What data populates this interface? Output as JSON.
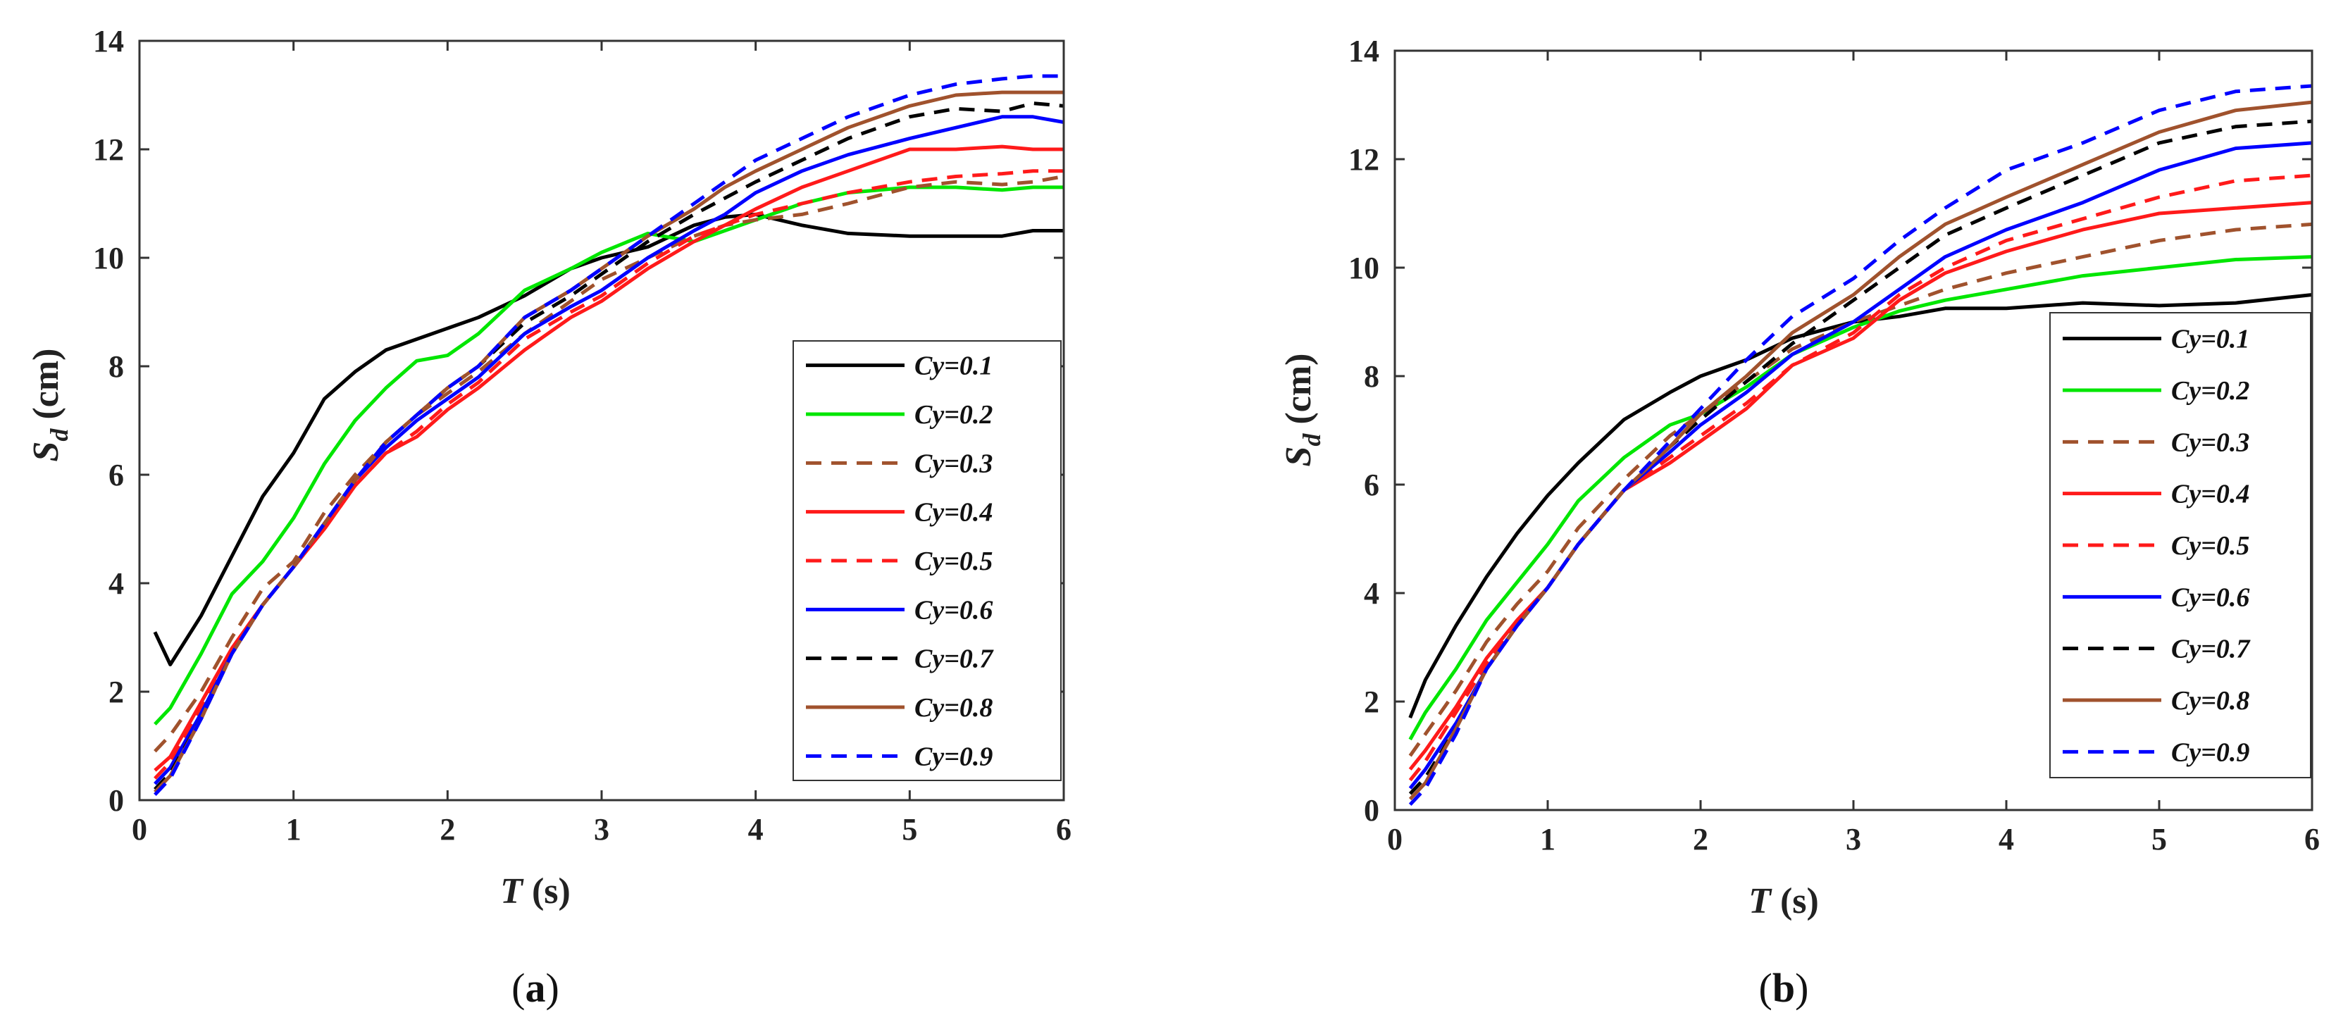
{
  "chart_data": [
    {
      "type": "line",
      "caption_open": "(",
      "caption_letter": "a",
      "caption_close": ")",
      "xlabel_var": "T",
      "xlabel_unit": " (s)",
      "ylabel_var": "S",
      "ylabel_sub": "d",
      "ylabel_unit": " (cm)",
      "xlim": [
        0,
        6
      ],
      "ylim": [
        0,
        14
      ],
      "xticks": [
        0,
        1,
        2,
        3,
        4,
        5,
        6
      ],
      "yticks": [
        0,
        2,
        4,
        6,
        8,
        10,
        12,
        14
      ],
      "legend_position": "lower-right",
      "series": [
        {
          "name": "Cy=0.1",
          "color": "#000000",
          "dash": "solid",
          "x": [
            0.1,
            0.2,
            0.4,
            0.6,
            0.8,
            1.0,
            1.2,
            1.4,
            1.6,
            1.8,
            2.0,
            2.2,
            2.5,
            2.8,
            3.0,
            3.3,
            3.6,
            3.8,
            4.0,
            4.3,
            4.6,
            5.0,
            5.3,
            5.6,
            5.8,
            6.0
          ],
          "y": [
            3.1,
            2.5,
            3.4,
            4.5,
            5.6,
            6.4,
            7.4,
            7.9,
            8.3,
            8.5,
            8.7,
            8.9,
            9.3,
            9.8,
            10.0,
            10.2,
            10.6,
            10.75,
            10.8,
            10.6,
            10.45,
            10.4,
            10.4,
            10.4,
            10.5,
            10.5
          ]
        },
        {
          "name": "Cy=0.2",
          "color": "#00e600",
          "dash": "solid",
          "x": [
            0.1,
            0.2,
            0.4,
            0.6,
            0.8,
            1.0,
            1.2,
            1.4,
            1.6,
            1.8,
            2.0,
            2.2,
            2.5,
            2.8,
            3.0,
            3.3,
            3.6,
            3.8,
            4.0,
            4.3,
            4.6,
            5.0,
            5.3,
            5.6,
            5.8,
            6.0
          ],
          "y": [
            1.4,
            1.7,
            2.7,
            3.8,
            4.4,
            5.2,
            6.2,
            7.0,
            7.6,
            8.1,
            8.2,
            8.6,
            9.4,
            9.8,
            10.1,
            10.45,
            10.3,
            10.5,
            10.7,
            11.0,
            11.2,
            11.3,
            11.3,
            11.25,
            11.3,
            11.3
          ]
        },
        {
          "name": "Cy=0.3",
          "color": "#a0522d",
          "dash": "dash",
          "x": [
            0.1,
            0.2,
            0.4,
            0.6,
            0.8,
            1.0,
            1.2,
            1.4,
            1.6,
            1.8,
            2.0,
            2.2,
            2.5,
            2.8,
            3.0,
            3.3,
            3.6,
            3.8,
            4.0,
            4.3,
            4.6,
            5.0,
            5.3,
            5.6,
            5.8,
            6.0
          ],
          "y": [
            0.9,
            1.2,
            2.0,
            3.0,
            3.9,
            4.4,
            5.3,
            6.0,
            6.6,
            7.1,
            7.5,
            7.9,
            8.6,
            9.2,
            9.6,
            10.0,
            10.4,
            10.6,
            10.7,
            10.8,
            11.0,
            11.3,
            11.4,
            11.35,
            11.4,
            11.5
          ]
        },
        {
          "name": "Cy=0.4",
          "color": "#ff1a1a",
          "dash": "solid",
          "x": [
            0.1,
            0.2,
            0.4,
            0.6,
            0.8,
            1.0,
            1.2,
            1.4,
            1.6,
            1.8,
            2.0,
            2.2,
            2.5,
            2.8,
            3.0,
            3.3,
            3.6,
            3.8,
            4.0,
            4.3,
            4.6,
            5.0,
            5.3,
            5.6,
            5.8,
            6.0
          ],
          "y": [
            0.55,
            0.8,
            1.8,
            2.8,
            3.6,
            4.3,
            5.0,
            5.8,
            6.4,
            6.7,
            7.2,
            7.6,
            8.3,
            8.9,
            9.2,
            9.8,
            10.3,
            10.6,
            10.9,
            11.3,
            11.6,
            12.0,
            12.0,
            12.05,
            12.0,
            12.0
          ]
        },
        {
          "name": "Cy=0.5",
          "color": "#ff1a1a",
          "dash": "dash",
          "x": [
            0.1,
            0.2,
            0.4,
            0.6,
            0.8,
            1.0,
            1.2,
            1.4,
            1.6,
            1.8,
            2.0,
            2.2,
            2.5,
            2.8,
            3.0,
            3.3,
            3.6,
            3.8,
            4.0,
            4.3,
            4.6,
            5.0,
            5.3,
            5.6,
            5.8,
            6.0
          ],
          "y": [
            0.4,
            0.7,
            1.7,
            2.8,
            3.6,
            4.3,
            5.0,
            5.8,
            6.4,
            6.8,
            7.3,
            7.7,
            8.5,
            9.0,
            9.3,
            9.9,
            10.4,
            10.6,
            10.8,
            11.0,
            11.2,
            11.4,
            11.5,
            11.55,
            11.6,
            11.6
          ]
        },
        {
          "name": "Cy=0.6",
          "color": "#0000ff",
          "dash": "solid",
          "x": [
            0.1,
            0.2,
            0.4,
            0.6,
            0.8,
            1.0,
            1.2,
            1.4,
            1.6,
            1.8,
            2.0,
            2.2,
            2.5,
            2.8,
            3.0,
            3.3,
            3.6,
            3.8,
            4.0,
            4.3,
            4.6,
            5.0,
            5.3,
            5.6,
            5.8,
            6.0
          ],
          "y": [
            0.3,
            0.6,
            1.6,
            2.7,
            3.6,
            4.3,
            5.1,
            5.9,
            6.5,
            7.0,
            7.4,
            7.8,
            8.6,
            9.1,
            9.4,
            10.0,
            10.5,
            10.8,
            11.2,
            11.6,
            11.9,
            12.2,
            12.4,
            12.6,
            12.6,
            12.5
          ]
        },
        {
          "name": "Cy=0.7",
          "color": "#000000",
          "dash": "dash",
          "x": [
            0.1,
            0.2,
            0.4,
            0.6,
            0.8,
            1.0,
            1.2,
            1.4,
            1.6,
            1.8,
            2.0,
            2.2,
            2.5,
            2.8,
            3.0,
            3.3,
            3.6,
            3.8,
            4.0,
            4.3,
            4.6,
            5.0,
            5.3,
            5.6,
            5.8,
            6.0
          ],
          "y": [
            0.2,
            0.5,
            1.5,
            2.7,
            3.6,
            4.3,
            5.1,
            5.9,
            6.6,
            7.1,
            7.6,
            8.0,
            8.8,
            9.3,
            9.7,
            10.3,
            10.8,
            11.1,
            11.4,
            11.8,
            12.2,
            12.6,
            12.75,
            12.7,
            12.85,
            12.8
          ]
        },
        {
          "name": "Cy=0.8",
          "color": "#a0522d",
          "dash": "solid",
          "x": [
            0.1,
            0.2,
            0.4,
            0.6,
            0.8,
            1.0,
            1.2,
            1.4,
            1.6,
            1.8,
            2.0,
            2.2,
            2.5,
            2.8,
            3.0,
            3.3,
            3.6,
            3.8,
            4.0,
            4.3,
            4.6,
            5.0,
            5.3,
            5.6,
            5.8,
            6.0
          ],
          "y": [
            0.15,
            0.45,
            1.5,
            2.7,
            3.6,
            4.3,
            5.1,
            5.9,
            6.6,
            7.1,
            7.6,
            8.0,
            8.9,
            9.4,
            9.8,
            10.4,
            10.9,
            11.3,
            11.6,
            12.0,
            12.4,
            12.8,
            13.0,
            13.05,
            13.05,
            13.05
          ]
        },
        {
          "name": "Cy=0.9",
          "color": "#0000ff",
          "dash": "dash",
          "x": [
            0.1,
            0.2,
            0.4,
            0.6,
            0.8,
            1.0,
            1.2,
            1.4,
            1.6,
            1.8,
            2.0,
            2.2,
            2.5,
            2.8,
            3.0,
            3.3,
            3.6,
            3.8,
            4.0,
            4.3,
            4.6,
            5.0,
            5.3,
            5.6,
            5.8,
            6.0
          ],
          "y": [
            0.1,
            0.4,
            1.5,
            2.7,
            3.6,
            4.3,
            5.1,
            5.9,
            6.6,
            7.1,
            7.6,
            8.0,
            8.9,
            9.4,
            9.8,
            10.4,
            11.0,
            11.4,
            11.8,
            12.2,
            12.6,
            13.0,
            13.2,
            13.3,
            13.35,
            13.35
          ]
        }
      ]
    },
    {
      "type": "line",
      "caption_open": "(",
      "caption_letter": "b",
      "caption_close": ")",
      "xlabel_var": "T",
      "xlabel_unit": " (s)",
      "ylabel_var": "S",
      "ylabel_sub": "d",
      "ylabel_unit": " (cm)",
      "xlim": [
        0,
        6
      ],
      "ylim": [
        0,
        14
      ],
      "xticks": [
        0,
        1,
        2,
        3,
        4,
        5,
        6
      ],
      "yticks": [
        0,
        2,
        4,
        6,
        8,
        10,
        12,
        14
      ],
      "legend_position": "lower-right",
      "series": [
        {
          "name": "Cy=0.1",
          "color": "#000000",
          "dash": "solid",
          "x": [
            0.1,
            0.2,
            0.4,
            0.6,
            0.8,
            1.0,
            1.2,
            1.5,
            1.8,
            2.0,
            2.3,
            2.6,
            3.0,
            3.3,
            3.6,
            4.0,
            4.5,
            5.0,
            5.5,
            6.0
          ],
          "y": [
            1.7,
            2.4,
            3.4,
            4.3,
            5.1,
            5.8,
            6.4,
            7.2,
            7.7,
            8.0,
            8.3,
            8.7,
            9.0,
            9.1,
            9.25,
            9.25,
            9.35,
            9.3,
            9.35,
            9.5
          ]
        },
        {
          "name": "Cy=0.2",
          "color": "#00e600",
          "dash": "solid",
          "x": [
            0.1,
            0.2,
            0.4,
            0.6,
            0.8,
            1.0,
            1.2,
            1.5,
            1.8,
            2.0,
            2.3,
            2.6,
            3.0,
            3.3,
            3.6,
            4.0,
            4.5,
            5.0,
            5.5,
            6.0
          ],
          "y": [
            1.3,
            1.8,
            2.6,
            3.5,
            4.2,
            4.9,
            5.7,
            6.5,
            7.1,
            7.3,
            7.8,
            8.4,
            8.9,
            9.2,
            9.4,
            9.6,
            9.85,
            10.0,
            10.15,
            10.2
          ]
        },
        {
          "name": "Cy=0.3",
          "color": "#a0522d",
          "dash": "dash",
          "x": [
            0.1,
            0.2,
            0.4,
            0.6,
            0.8,
            1.0,
            1.2,
            1.5,
            1.8,
            2.0,
            2.3,
            2.6,
            3.0,
            3.3,
            3.6,
            4.0,
            4.5,
            5.0,
            5.5,
            6.0
          ],
          "y": [
            1.0,
            1.4,
            2.2,
            3.1,
            3.8,
            4.4,
            5.2,
            6.1,
            6.9,
            7.3,
            7.9,
            8.5,
            9.0,
            9.3,
            9.6,
            9.9,
            10.2,
            10.5,
            10.7,
            10.8
          ]
        },
        {
          "name": "Cy=0.4",
          "color": "#ff1a1a",
          "dash": "solid",
          "x": [
            0.1,
            0.2,
            0.4,
            0.6,
            0.8,
            1.0,
            1.2,
            1.5,
            1.8,
            2.0,
            2.3,
            2.6,
            3.0,
            3.3,
            3.6,
            4.0,
            4.5,
            5.0,
            5.5,
            6.0
          ],
          "y": [
            0.75,
            1.1,
            1.9,
            2.8,
            3.5,
            4.1,
            4.9,
            5.9,
            6.4,
            6.8,
            7.4,
            8.2,
            8.7,
            9.4,
            9.9,
            10.3,
            10.7,
            11.0,
            11.1,
            11.2
          ]
        },
        {
          "name": "Cy=0.5",
          "color": "#ff1a1a",
          "dash": "dash",
          "x": [
            0.1,
            0.2,
            0.4,
            0.6,
            0.8,
            1.0,
            1.2,
            1.5,
            1.8,
            2.0,
            2.3,
            2.6,
            3.0,
            3.3,
            3.6,
            4.0,
            4.5,
            5.0,
            5.5,
            6.0
          ],
          "y": [
            0.55,
            0.9,
            1.8,
            2.7,
            3.4,
            4.1,
            4.9,
            5.9,
            6.5,
            6.9,
            7.5,
            8.2,
            8.8,
            9.5,
            10.0,
            10.5,
            10.9,
            11.3,
            11.6,
            11.7
          ]
        },
        {
          "name": "Cy=0.6",
          "color": "#0000ff",
          "dash": "solid",
          "x": [
            0.1,
            0.2,
            0.4,
            0.6,
            0.8,
            1.0,
            1.2,
            1.5,
            1.8,
            2.0,
            2.3,
            2.6,
            3.0,
            3.3,
            3.6,
            4.0,
            4.5,
            5.0,
            5.5,
            6.0
          ],
          "y": [
            0.4,
            0.75,
            1.6,
            2.6,
            3.4,
            4.1,
            4.9,
            5.9,
            6.6,
            7.1,
            7.7,
            8.4,
            9.0,
            9.6,
            10.2,
            10.7,
            11.2,
            11.8,
            12.2,
            12.3
          ]
        },
        {
          "name": "Cy=0.7",
          "color": "#000000",
          "dash": "dash",
          "x": [
            0.1,
            0.2,
            0.4,
            0.6,
            0.8,
            1.0,
            1.2,
            1.5,
            1.8,
            2.0,
            2.3,
            2.6,
            3.0,
            3.3,
            3.6,
            4.0,
            4.5,
            5.0,
            5.5,
            6.0
          ],
          "y": [
            0.3,
            0.6,
            1.5,
            2.6,
            3.4,
            4.1,
            4.9,
            5.9,
            6.7,
            7.2,
            7.9,
            8.6,
            9.4,
            10.0,
            10.6,
            11.1,
            11.7,
            12.3,
            12.6,
            12.7
          ]
        },
        {
          "name": "Cy=0.8",
          "color": "#a0522d",
          "dash": "solid",
          "x": [
            0.1,
            0.2,
            0.4,
            0.6,
            0.8,
            1.0,
            1.2,
            1.5,
            1.8,
            2.0,
            2.3,
            2.6,
            3.0,
            3.3,
            3.6,
            4.0,
            4.5,
            5.0,
            5.5,
            6.0
          ],
          "y": [
            0.2,
            0.5,
            1.5,
            2.6,
            3.4,
            4.1,
            4.9,
            5.9,
            6.7,
            7.3,
            8.0,
            8.8,
            9.5,
            10.2,
            10.8,
            11.3,
            11.9,
            12.5,
            12.9,
            13.05
          ]
        },
        {
          "name": "Cy=0.9",
          "color": "#0000ff",
          "dash": "dash",
          "x": [
            0.1,
            0.2,
            0.4,
            0.6,
            0.8,
            1.0,
            1.2,
            1.5,
            1.8,
            2.0,
            2.3,
            2.6,
            3.0,
            3.3,
            3.6,
            4.0,
            4.5,
            5.0,
            5.5,
            6.0
          ],
          "y": [
            0.1,
            0.4,
            1.4,
            2.6,
            3.4,
            4.1,
            4.9,
            5.9,
            6.8,
            7.4,
            8.3,
            9.1,
            9.8,
            10.5,
            11.1,
            11.8,
            12.3,
            12.9,
            13.25,
            13.35
          ]
        }
      ]
    }
  ]
}
